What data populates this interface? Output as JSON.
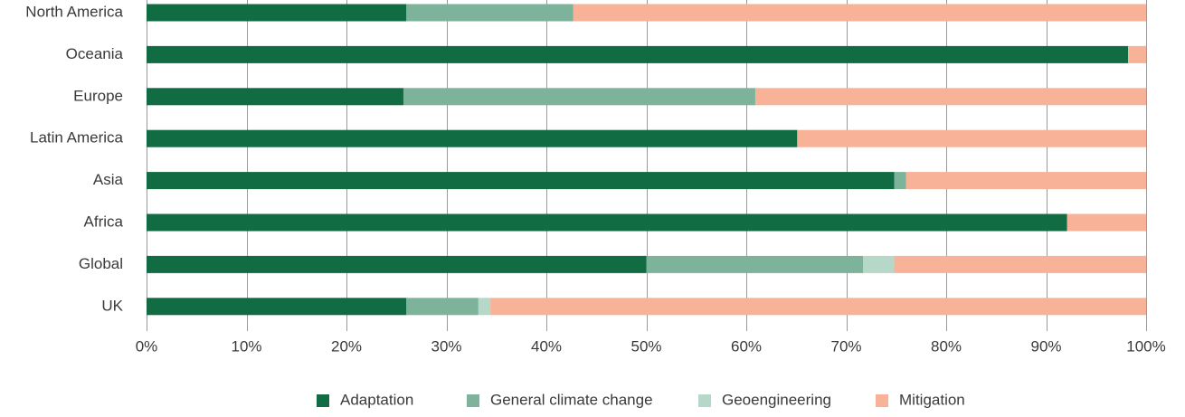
{
  "chart_data": {
    "type": "bar",
    "orientation": "horizontal",
    "stacked": true,
    "title": "",
    "xlabel": "",
    "ylabel": "",
    "xlim": [
      0,
      100
    ],
    "x_ticks": [
      "0%",
      "10%",
      "20%",
      "30%",
      "40%",
      "50%",
      "60%",
      "70%",
      "80%",
      "90%",
      "100%"
    ],
    "categories": [
      "North America",
      "Oceania",
      "Europe",
      "Latin America",
      "Asia",
      "Africa",
      "Global",
      "UK"
    ],
    "series": [
      {
        "name": "Adaptation",
        "color": "#116c43",
        "values": [
          26,
          98.2,
          25.7,
          65.1,
          74.8,
          92.1,
          50,
          26
        ]
      },
      {
        "name": "General climate change",
        "color": "#7cb39a",
        "values": [
          16.7,
          0,
          35.2,
          0,
          1.2,
          0,
          21.7,
          7.2
        ]
      },
      {
        "name": "Geoengineering",
        "color": "#b6d8c9",
        "values": [
          0,
          0,
          0,
          0,
          0,
          0,
          3.1,
          1.2
        ]
      },
      {
        "name": "Mitigation",
        "color": "#f8b298",
        "values": [
          57.3,
          1.8,
          39.1,
          34.9,
          24,
          7.9,
          25.2,
          65.6
        ]
      }
    ],
    "grid": true,
    "legend_position": "bottom"
  }
}
